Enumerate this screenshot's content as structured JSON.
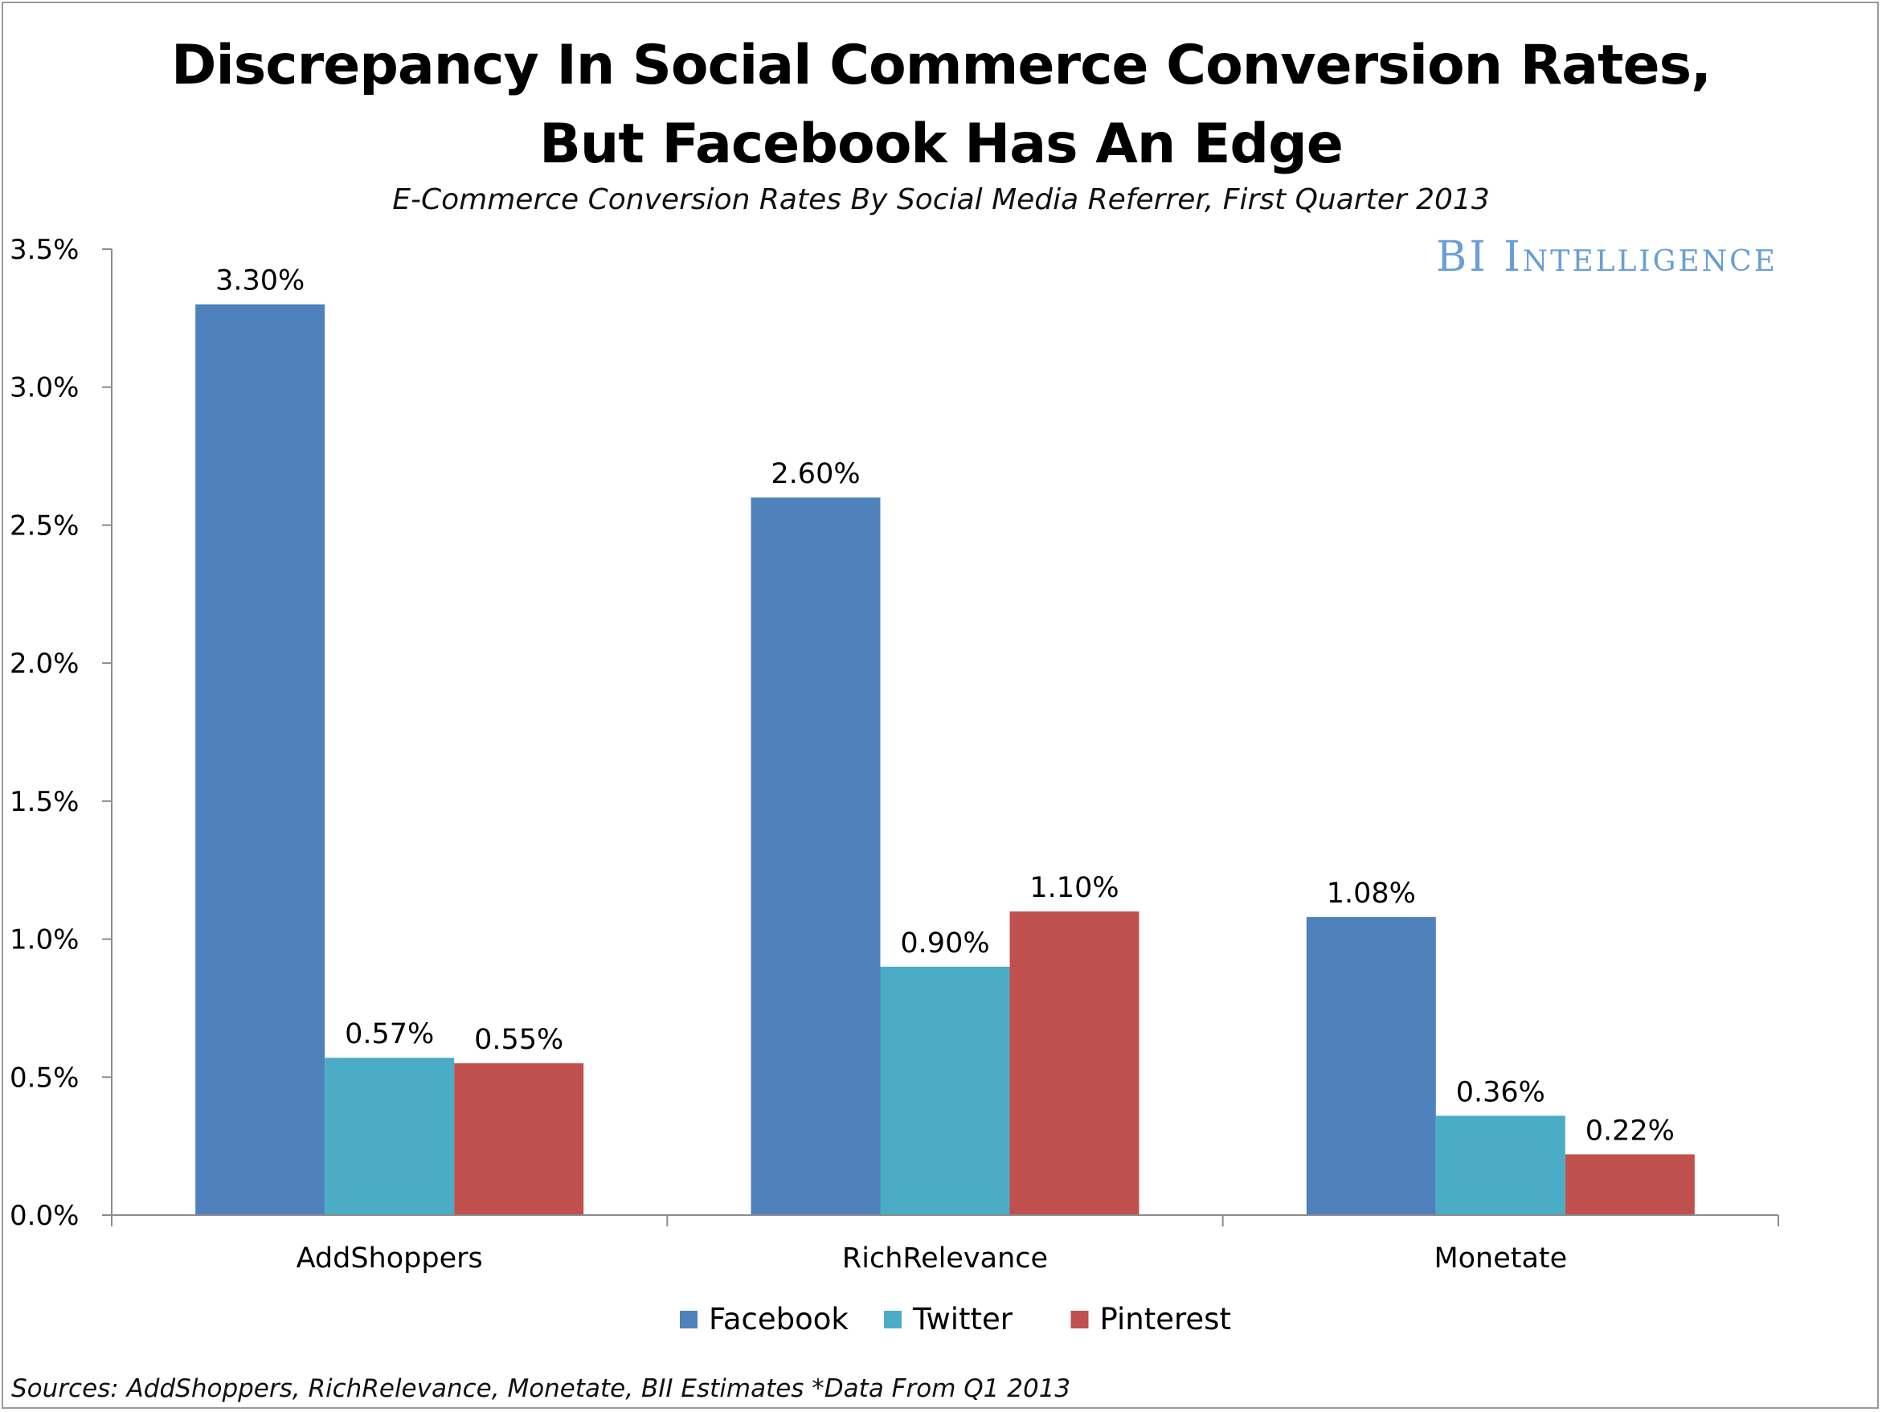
{
  "header": {
    "title_line1": "Discrepancy In Social Commerce Conversion Rates,",
    "title_line2": "But Facebook Has An Edge",
    "subtitle": "E-Commerce Conversion Rates By Social Media Referrer, First Quarter 2013",
    "brand": "BI Intelligence"
  },
  "footer": {
    "sources": "Sources: AddShoppers, RichRelevance, Monetate, BII Estimates *Data From Q1 2013"
  },
  "colors": {
    "facebook": "#4f81bd",
    "twitter": "#4bacc6",
    "pinterest": "#c0504d",
    "brand": "#6a9ed6",
    "axis": "#8c8c8c"
  },
  "chart_data": {
    "type": "bar",
    "title": "Discrepancy In Social Commerce Conversion Rates, But Facebook Has An Edge",
    "subtitle": "E-Commerce Conversion Rates By Social Media Referrer, First Quarter 2013",
    "xlabel": "",
    "ylabel": "",
    "ylim": [
      0,
      3.5
    ],
    "y_ticks": [
      {
        "value": 0.0,
        "label": "0.0%"
      },
      {
        "value": 0.5,
        "label": "0.5%"
      },
      {
        "value": 1.0,
        "label": "1.0%"
      },
      {
        "value": 1.5,
        "label": "1.5%"
      },
      {
        "value": 2.0,
        "label": "2.0%"
      },
      {
        "value": 2.5,
        "label": "2.5%"
      },
      {
        "value": 3.0,
        "label": "3.0%"
      },
      {
        "value": 3.5,
        "label": "3.5%"
      }
    ],
    "grid": false,
    "legend": "bottom",
    "categories": [
      "AddShoppers",
      "RichRelevance",
      "Monetate"
    ],
    "series": [
      {
        "name": "Facebook",
        "color": "#4f81bd",
        "values": [
          3.3,
          2.6,
          1.08
        ],
        "labels": [
          "3.30%",
          "2.60%",
          "1.08%"
        ]
      },
      {
        "name": "Twitter",
        "color": "#4bacc6",
        "values": [
          0.57,
          0.9,
          0.36
        ],
        "labels": [
          "0.57%",
          "0.90%",
          "0.36%"
        ]
      },
      {
        "name": "Pinterest",
        "color": "#c0504d",
        "values": [
          0.55,
          1.1,
          0.22
        ],
        "labels": [
          "0.55%",
          "1.10%",
          "0.22%"
        ]
      }
    ]
  }
}
